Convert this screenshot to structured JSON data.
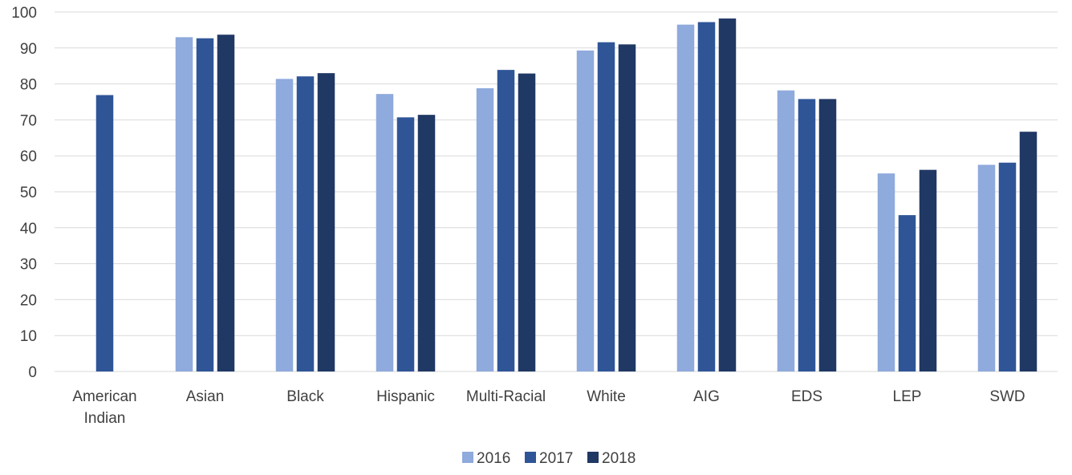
{
  "chart_data": {
    "type": "bar",
    "categories": [
      [
        "American",
        "Indian"
      ],
      [
        "Asian"
      ],
      [
        "Black"
      ],
      [
        "Hispanic"
      ],
      [
        "Multi-Racial"
      ],
      [
        "White"
      ],
      [
        "AIG"
      ],
      [
        "EDS"
      ],
      [
        "LEP"
      ],
      [
        "SWD"
      ]
    ],
    "series": [
      {
        "name": "2016",
        "color": "#8faadc",
        "values": [
          null,
          93.0,
          81.4,
          77.2,
          78.8,
          89.3,
          96.5,
          78.2,
          55.1,
          57.5
        ]
      },
      {
        "name": "2017",
        "color": "#2f5597",
        "values": [
          76.9,
          92.7,
          82.1,
          70.7,
          83.9,
          91.6,
          97.2,
          75.8,
          43.5,
          58.1
        ]
      },
      {
        "name": "2018",
        "color": "#203864",
        "values": [
          null,
          93.7,
          83.0,
          71.4,
          82.9,
          91.0,
          98.2,
          75.8,
          56.1,
          66.7
        ]
      }
    ],
    "title": "",
    "xlabel": "",
    "ylabel": "",
    "ylim": [
      0,
      100
    ],
    "yticks": [
      "0",
      "10",
      "20",
      "30",
      "40",
      "50",
      "60",
      "70",
      "80",
      "90",
      "100"
    ],
    "grid": true,
    "legend_position": "bottom-center"
  }
}
